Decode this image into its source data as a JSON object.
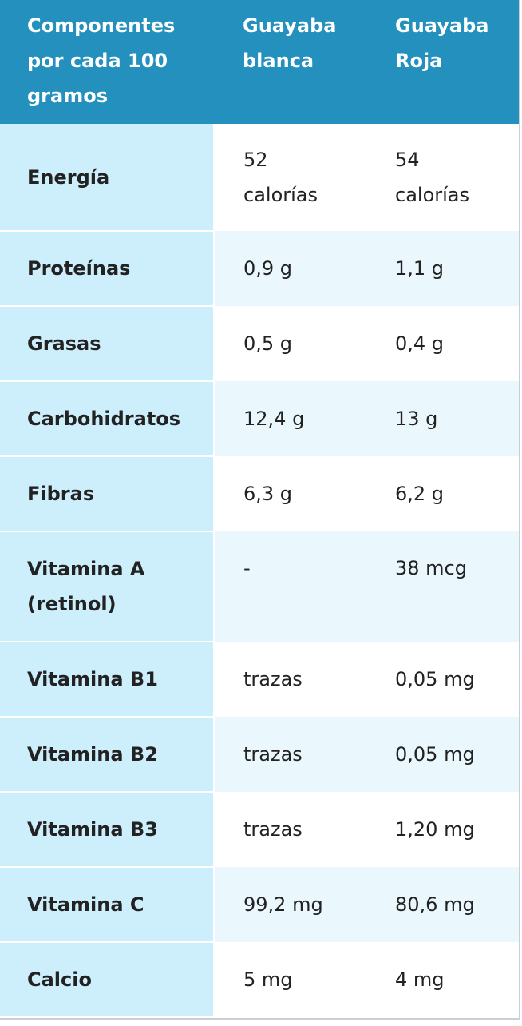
{
  "header": {
    "col1": "Componentes por cada 100 gramos",
    "col2": "Guayaba blanca",
    "col3": "Guayaba Roja"
  },
  "rows": [
    {
      "name": "Energía",
      "blanca": "52 calorías",
      "roja": "54 calorías"
    },
    {
      "name": "Proteínas",
      "blanca": "0,9 g",
      "roja": "1,1 g"
    },
    {
      "name": "Grasas",
      "blanca": "0,5 g",
      "roja": "0,4 g"
    },
    {
      "name": "Carbohidratos",
      "blanca": "12,4 g",
      "roja": "13 g"
    },
    {
      "name": "Fibras",
      "blanca": "6,3 g",
      "roja": "6,2 g"
    },
    {
      "name": "Vitamina A (retinol)",
      "blanca": "-",
      "roja": "38 mcg"
    },
    {
      "name": "Vitamina B1",
      "blanca": "trazas",
      "roja": "0,05 mg"
    },
    {
      "name": "Vitamina B2",
      "blanca": "trazas",
      "roja": "0,05 mg"
    },
    {
      "name": "Vitamina B3",
      "blanca": "trazas",
      "roja": "1,20 mg"
    },
    {
      "name": "Vitamina C",
      "blanca": "99,2 mg",
      "roja": "80,6 mg"
    },
    {
      "name": "Calcio",
      "blanca": "5 mg",
      "roja": "4 mg"
    }
  ],
  "colors": {
    "header_bg": "#2390be",
    "name_cell_bg": "#cdeefb",
    "alt_row_bg": "#eaf8fe"
  }
}
